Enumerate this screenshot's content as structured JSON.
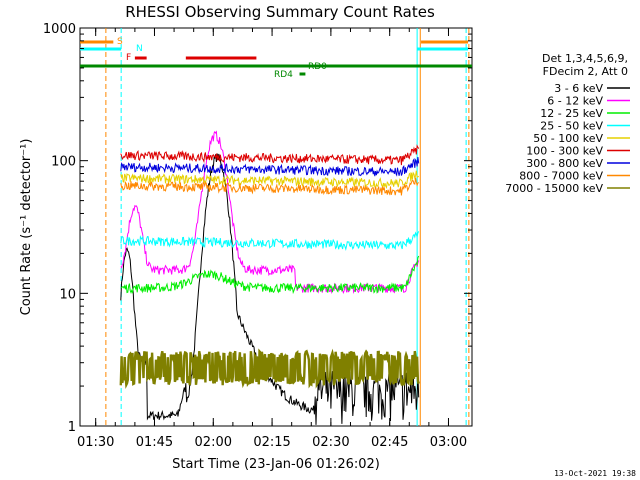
{
  "chart_data": {
    "type": "line",
    "title": "RHESSI Observing Summary Count Rates",
    "xlabel": "Start Time (23-Jan-06 01:26:02)",
    "ylabel": "Count Rate (s⁻¹ detector⁻¹)",
    "yscale": "log",
    "ylim": [
      1,
      1000
    ],
    "xlim_min": [
      0,
      100
    ],
    "x_ticks": [
      {
        "min": 4,
        "label": "01:30"
      },
      {
        "min": 19,
        "label": "01:45"
      },
      {
        "min": 34,
        "label": "02:00"
      },
      {
        "min": 49,
        "label": "02:15"
      },
      {
        "min": 64,
        "label": "02:30"
      },
      {
        "min": 79,
        "label": "02:45"
      },
      {
        "min": 94,
        "label": "03:00"
      }
    ],
    "y_ticks": [
      {
        "v": 1,
        "label": "1"
      },
      {
        "v": 10,
        "label": "10"
      },
      {
        "v": 100,
        "label": "100"
      },
      {
        "v": 1000,
        "label": "1000"
      }
    ],
    "legend_header": [
      "Det 1,3,4,5,6,9,",
      "FDecim 2, Att 0"
    ],
    "legend_position": "right",
    "series": [
      {
        "name": "3 - 6 keV",
        "color": "#000000"
      },
      {
        "name": "6 - 12 keV",
        "color": "#ff00ff"
      },
      {
        "name": "12 - 25 keV",
        "color": "#00ee00"
      },
      {
        "name": "25 - 50 keV",
        "color": "#00ffff"
      },
      {
        "name": "50 - 100 keV",
        "color": "#e6d000"
      },
      {
        "name": "100 - 300 keV",
        "color": "#dd0000"
      },
      {
        "name": "300 - 800 keV",
        "color": "#0000dd"
      },
      {
        "name": "800 - 7000 keV",
        "color": "#ff8800"
      },
      {
        "name": "7000 - 15000 keV",
        "color": "#808000"
      }
    ],
    "flags": [
      {
        "label": "S",
        "color": "#ff8800"
      },
      {
        "label": "N",
        "color": "#00ffff"
      },
      {
        "label": "F",
        "color": "#dd0000"
      },
      {
        "label": "RD0",
        "color": "#008800"
      },
      {
        "label": "RD4",
        "color": "#008800"
      }
    ],
    "footer": "13-Oct-2021 19:38"
  }
}
